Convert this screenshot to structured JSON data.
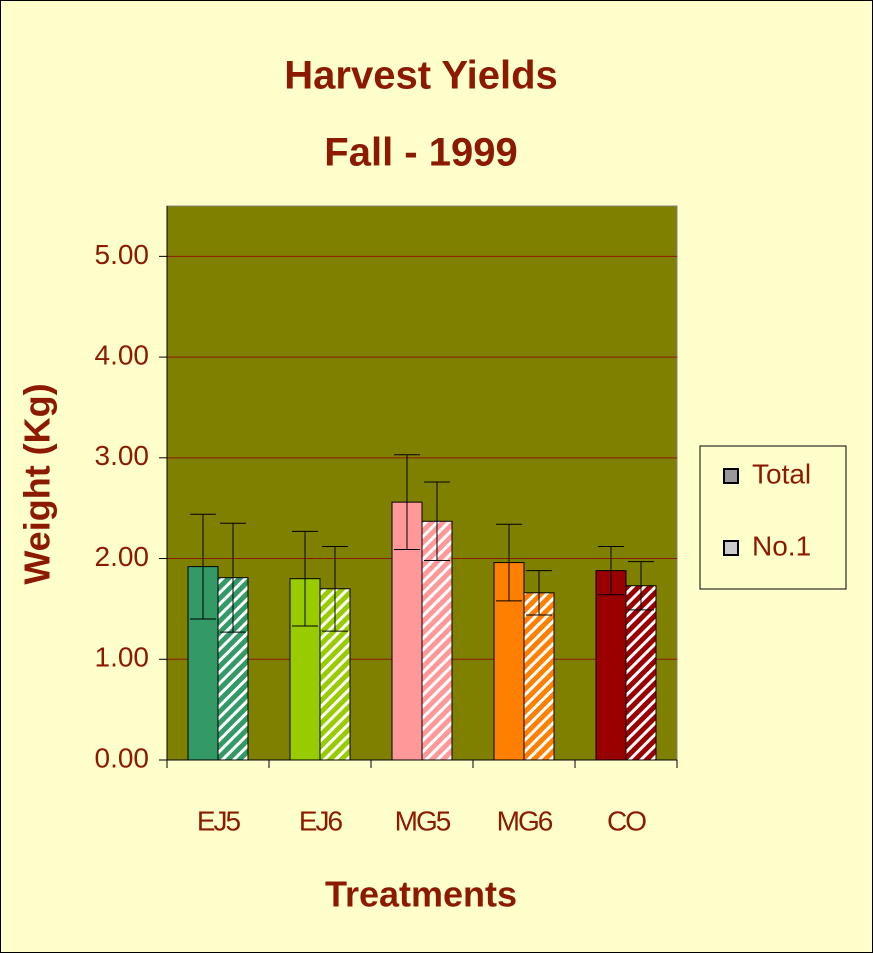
{
  "chart_data": {
    "type": "bar",
    "title": [
      "Harvest Yields",
      "Fall - 1999"
    ],
    "y_label": "Weight (Kg)",
    "x_label": "Treatments",
    "categories": [
      "EJ5",
      "EJ6",
      "MG5",
      "MG6",
      "CO"
    ],
    "category_colors": [
      "#339966",
      "#99cc00",
      "#ff9999",
      "#ff8000",
      "#990000"
    ],
    "series": [
      {
        "name": "Total",
        "color": "#999999",
        "values": [
          1.92,
          1.8,
          2.56,
          1.96,
          1.88
        ],
        "errors": [
          0.52,
          0.47,
          0.47,
          0.38,
          0.24
        ]
      },
      {
        "name": "No.1",
        "color": "#cccccc",
        "hatched": true,
        "values": [
          1.81,
          1.7,
          2.37,
          1.66,
          1.73
        ],
        "errors": [
          0.54,
          0.42,
          0.39,
          0.22,
          0.24
        ]
      }
    ],
    "ylim": [
      0,
      5.5
    ],
    "yticks": [
      {
        "value": 0,
        "label": "0.00"
      },
      {
        "value": 1,
        "label": "1.00"
      },
      {
        "value": 2,
        "label": "2.00"
      },
      {
        "value": 3,
        "label": "3.00"
      },
      {
        "value": 4,
        "label": "4.00"
      },
      {
        "value": 5,
        "label": "5.00"
      }
    ],
    "grid": true,
    "legend": "right",
    "plot_background": "#808000"
  }
}
